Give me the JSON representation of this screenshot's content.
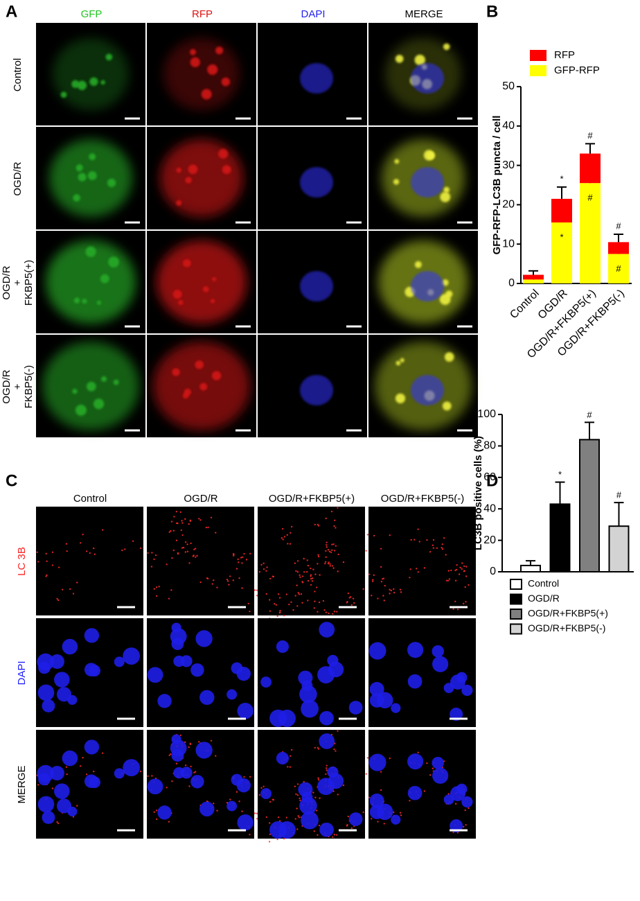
{
  "panels": {
    "A": {
      "label": "A",
      "columns": [
        "GFP",
        "RFP",
        "DAPI",
        "MERGE"
      ],
      "rows": [
        [
          "Control"
        ],
        [
          "OGD/R"
        ],
        [
          "OGD/R",
          "+",
          "FKBP5(+)"
        ],
        [
          "OGD/R",
          "+",
          "FKBP5(-)"
        ]
      ]
    },
    "C": {
      "label": "C",
      "columns": [
        "Control",
        "OGD/R",
        "OGD/R+FKBP5(+)",
        "OGD/R+FKBP5(-)"
      ],
      "rows": [
        "LC 3B",
        "DAPI",
        "MERGE"
      ]
    }
  },
  "chart_data": [
    {
      "type": "stacked_bar",
      "panel_label": "B",
      "ylabel": "GFP-RFP-LC3B puncta / cell",
      "categories": [
        "Control",
        "OGD/R",
        "OGD/R+FKBP5(+)",
        "OGD/R+FKBP5(-)"
      ],
      "series": [
        {
          "name": "GFP-RFP",
          "color": "#ffff00",
          "values": [
            1,
            15.5,
            25.5,
            7.5
          ],
          "errors": [
            0.5,
            2,
            2.5,
            1
          ],
          "annotations": [
            null,
            "*",
            "#",
            "#"
          ]
        },
        {
          "name": "RFP",
          "color": "#ff0000",
          "values": [
            1.2,
            6,
            7.5,
            3
          ],
          "errors": [
            1,
            3,
            2.5,
            2
          ],
          "annotations": [
            null,
            "*",
            "#",
            "#"
          ]
        }
      ],
      "ylim": [
        0,
        50
      ],
      "yticks": [
        0,
        10,
        20,
        30,
        40,
        50
      ],
      "legend": "top"
    },
    {
      "type": "bar",
      "panel_label": "D",
      "ylabel": "LC3B positive cells (%)",
      "categories": [
        "Control",
        "OGD/R",
        "OGD/R+FKBP5(+)",
        "OGD/R+FKBP5(-)"
      ],
      "values": [
        4,
        43,
        84,
        29
      ],
      "errors": [
        3,
        14,
        11,
        15
      ],
      "colors": [
        "#ffffff",
        "#000000",
        "#808080",
        "#d3d3d3"
      ],
      "annotations": [
        null,
        "*",
        "#",
        "#"
      ],
      "ylim": [
        0,
        100
      ],
      "yticks": [
        0,
        20,
        40,
        60,
        80,
        100
      ],
      "legend": "top"
    }
  ]
}
